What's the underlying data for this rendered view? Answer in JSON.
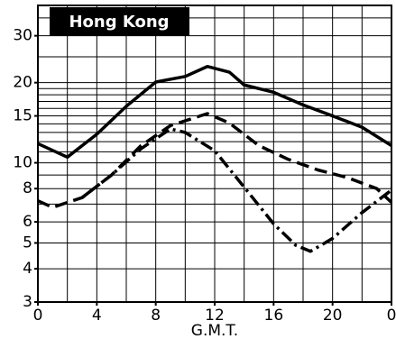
{
  "chart_data": {
    "type": "line",
    "title": "Hong Kong",
    "xlabel": "G.M.T.",
    "xlim": [
      0,
      24
    ],
    "xticks": [
      0,
      4,
      8,
      12,
      16,
      20,
      {
        "value": 24,
        "label": "0"
      }
    ],
    "xgrid": [
      0,
      2,
      4,
      6,
      8,
      10,
      12,
      14,
      16,
      18,
      20,
      22,
      24
    ],
    "ylim": [
      3,
      39
    ],
    "yscale": "log",
    "yticks": [
      3,
      4,
      5,
      6,
      8,
      10,
      15,
      20,
      30
    ],
    "ygrid": [
      3,
      4,
      5,
      6,
      7,
      8,
      9,
      10,
      11,
      12,
      13,
      14,
      15,
      16,
      17,
      18,
      19,
      20,
      25,
      30,
      35
    ],
    "grid": true,
    "series": [
      {
        "color": "#000000",
        "style": "solid",
        "x": [
          0,
          2,
          4,
          6,
          8,
          10,
          11.5,
          13,
          14,
          16,
          18,
          20,
          22,
          24
        ],
        "values": [
          11.8,
          10.5,
          12.8,
          16.3,
          20.1,
          21.1,
          23,
          21.9,
          19.6,
          18.4,
          16.5,
          15,
          13.6,
          11.6
        ]
      },
      {
        "color": "#000000",
        "style": "dashed",
        "x": [
          0,
          1,
          3,
          5,
          7,
          9,
          11.5,
          13,
          15,
          17,
          19,
          21,
          23,
          24
        ],
        "values": [
          7.2,
          6.8,
          7.4,
          9.0,
          11.6,
          13.8,
          15.3,
          14.1,
          11.6,
          10.3,
          9.4,
          8.8,
          8.0,
          7.1
        ]
      },
      {
        "color": "#000000",
        "style": "dashdot",
        "x": [
          3,
          5,
          7,
          9,
          10,
          12,
          14,
          16,
          17.5,
          18.5,
          20,
          22,
          24
        ],
        "values": [
          7.4,
          9.0,
          11.3,
          13.4,
          13.0,
          11.1,
          8.1,
          5.9,
          4.9,
          4.65,
          5.2,
          6.5,
          7.9
        ]
      }
    ]
  }
}
